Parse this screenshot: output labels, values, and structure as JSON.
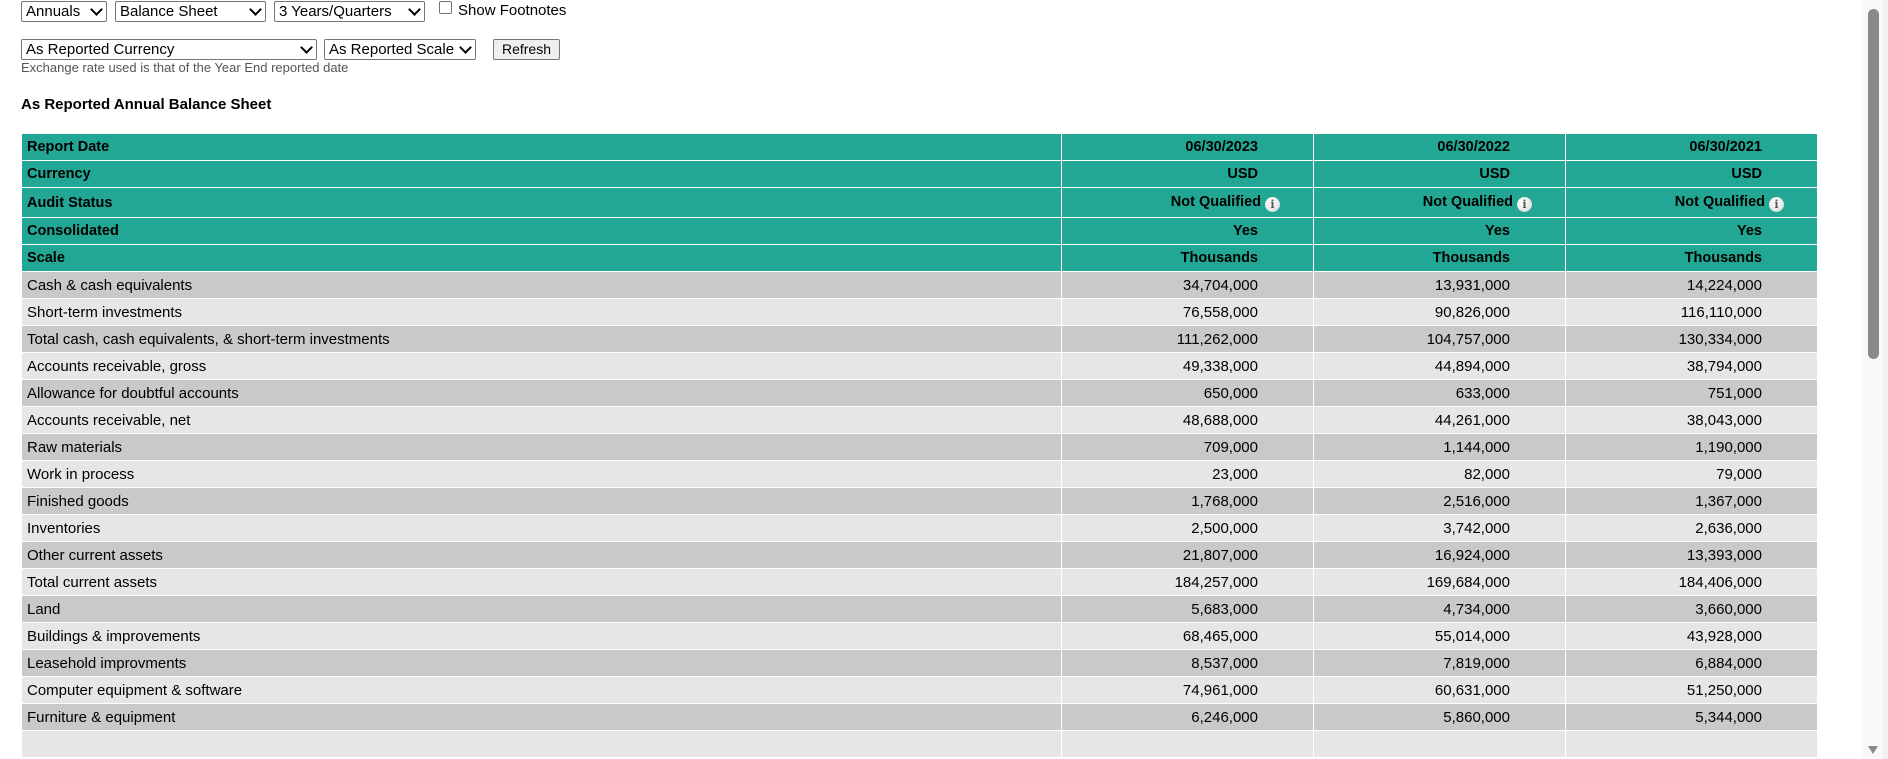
{
  "controls": {
    "period_select": "Annuals",
    "statement_select": "Balance Sheet",
    "range_select": "3 Years/Quarters",
    "footnotes_checkbox": {
      "label": "Show Footnotes",
      "checked": false
    },
    "currency_select": "As Reported Currency",
    "scale_select": "As Reported Scale",
    "refresh_button": "Refresh",
    "exchange_note": "Exchange rate used is that of the Year End reported date"
  },
  "report": {
    "title": "As Reported Annual Balance Sheet",
    "header_rows": [
      {
        "label": "Report Date",
        "values": [
          "06/30/2023",
          "06/30/2022",
          "06/30/2021"
        ]
      },
      {
        "label": "Currency",
        "values": [
          "USD",
          "USD",
          "USD"
        ]
      },
      {
        "label": "Audit Status",
        "values": [
          "Not Qualified",
          "Not Qualified",
          "Not Qualified"
        ],
        "icon": "info-icon"
      },
      {
        "label": "Consolidated",
        "values": [
          "Yes",
          "Yes",
          "Yes"
        ]
      },
      {
        "label": "Scale",
        "values": [
          "Thousands",
          "Thousands",
          "Thousands"
        ]
      }
    ],
    "rows": [
      {
        "label": "Cash & cash equivalents",
        "values": [
          "34,704,000",
          "13,931,000",
          "14,224,000"
        ]
      },
      {
        "label": "Short-term investments",
        "values": [
          "76,558,000",
          "90,826,000",
          "116,110,000"
        ]
      },
      {
        "label": "Total cash, cash equivalents, & short-term investments",
        "values": [
          "111,262,000",
          "104,757,000",
          "130,334,000"
        ]
      },
      {
        "label": "Accounts receivable, gross",
        "values": [
          "49,338,000",
          "44,894,000",
          "38,794,000"
        ]
      },
      {
        "label": "Allowance for doubtful accounts",
        "values": [
          "650,000",
          "633,000",
          "751,000"
        ]
      },
      {
        "label": "Accounts receivable, net",
        "values": [
          "48,688,000",
          "44,261,000",
          "38,043,000"
        ]
      },
      {
        "label": "Raw materials",
        "values": [
          "709,000",
          "1,144,000",
          "1,190,000"
        ]
      },
      {
        "label": "Work in process",
        "values": [
          "23,000",
          "82,000",
          "79,000"
        ]
      },
      {
        "label": "Finished goods",
        "values": [
          "1,768,000",
          "2,516,000",
          "1,367,000"
        ]
      },
      {
        "label": "Inventories",
        "values": [
          "2,500,000",
          "3,742,000",
          "2,636,000"
        ]
      },
      {
        "label": "Other current assets",
        "values": [
          "21,807,000",
          "16,924,000",
          "13,393,000"
        ]
      },
      {
        "label": "Total current assets",
        "values": [
          "184,257,000",
          "169,684,000",
          "184,406,000"
        ]
      },
      {
        "label": "Land",
        "values": [
          "5,683,000",
          "4,734,000",
          "3,660,000"
        ]
      },
      {
        "label": "Buildings & improvements",
        "values": [
          "68,465,000",
          "55,014,000",
          "43,928,000"
        ]
      },
      {
        "label": "Leasehold improvments",
        "values": [
          "8,537,000",
          "7,819,000",
          "6,884,000"
        ]
      },
      {
        "label": "Computer equipment & software",
        "values": [
          "74,961,000",
          "60,631,000",
          "51,250,000"
        ]
      },
      {
        "label": "Furniture & equipment",
        "values": [
          "6,246,000",
          "5,860,000",
          "5,344,000"
        ]
      }
    ]
  },
  "colors": {
    "header_bg": "#21a794",
    "row_dark": "#c9c9c9",
    "row_light": "#e6e6e6"
  }
}
